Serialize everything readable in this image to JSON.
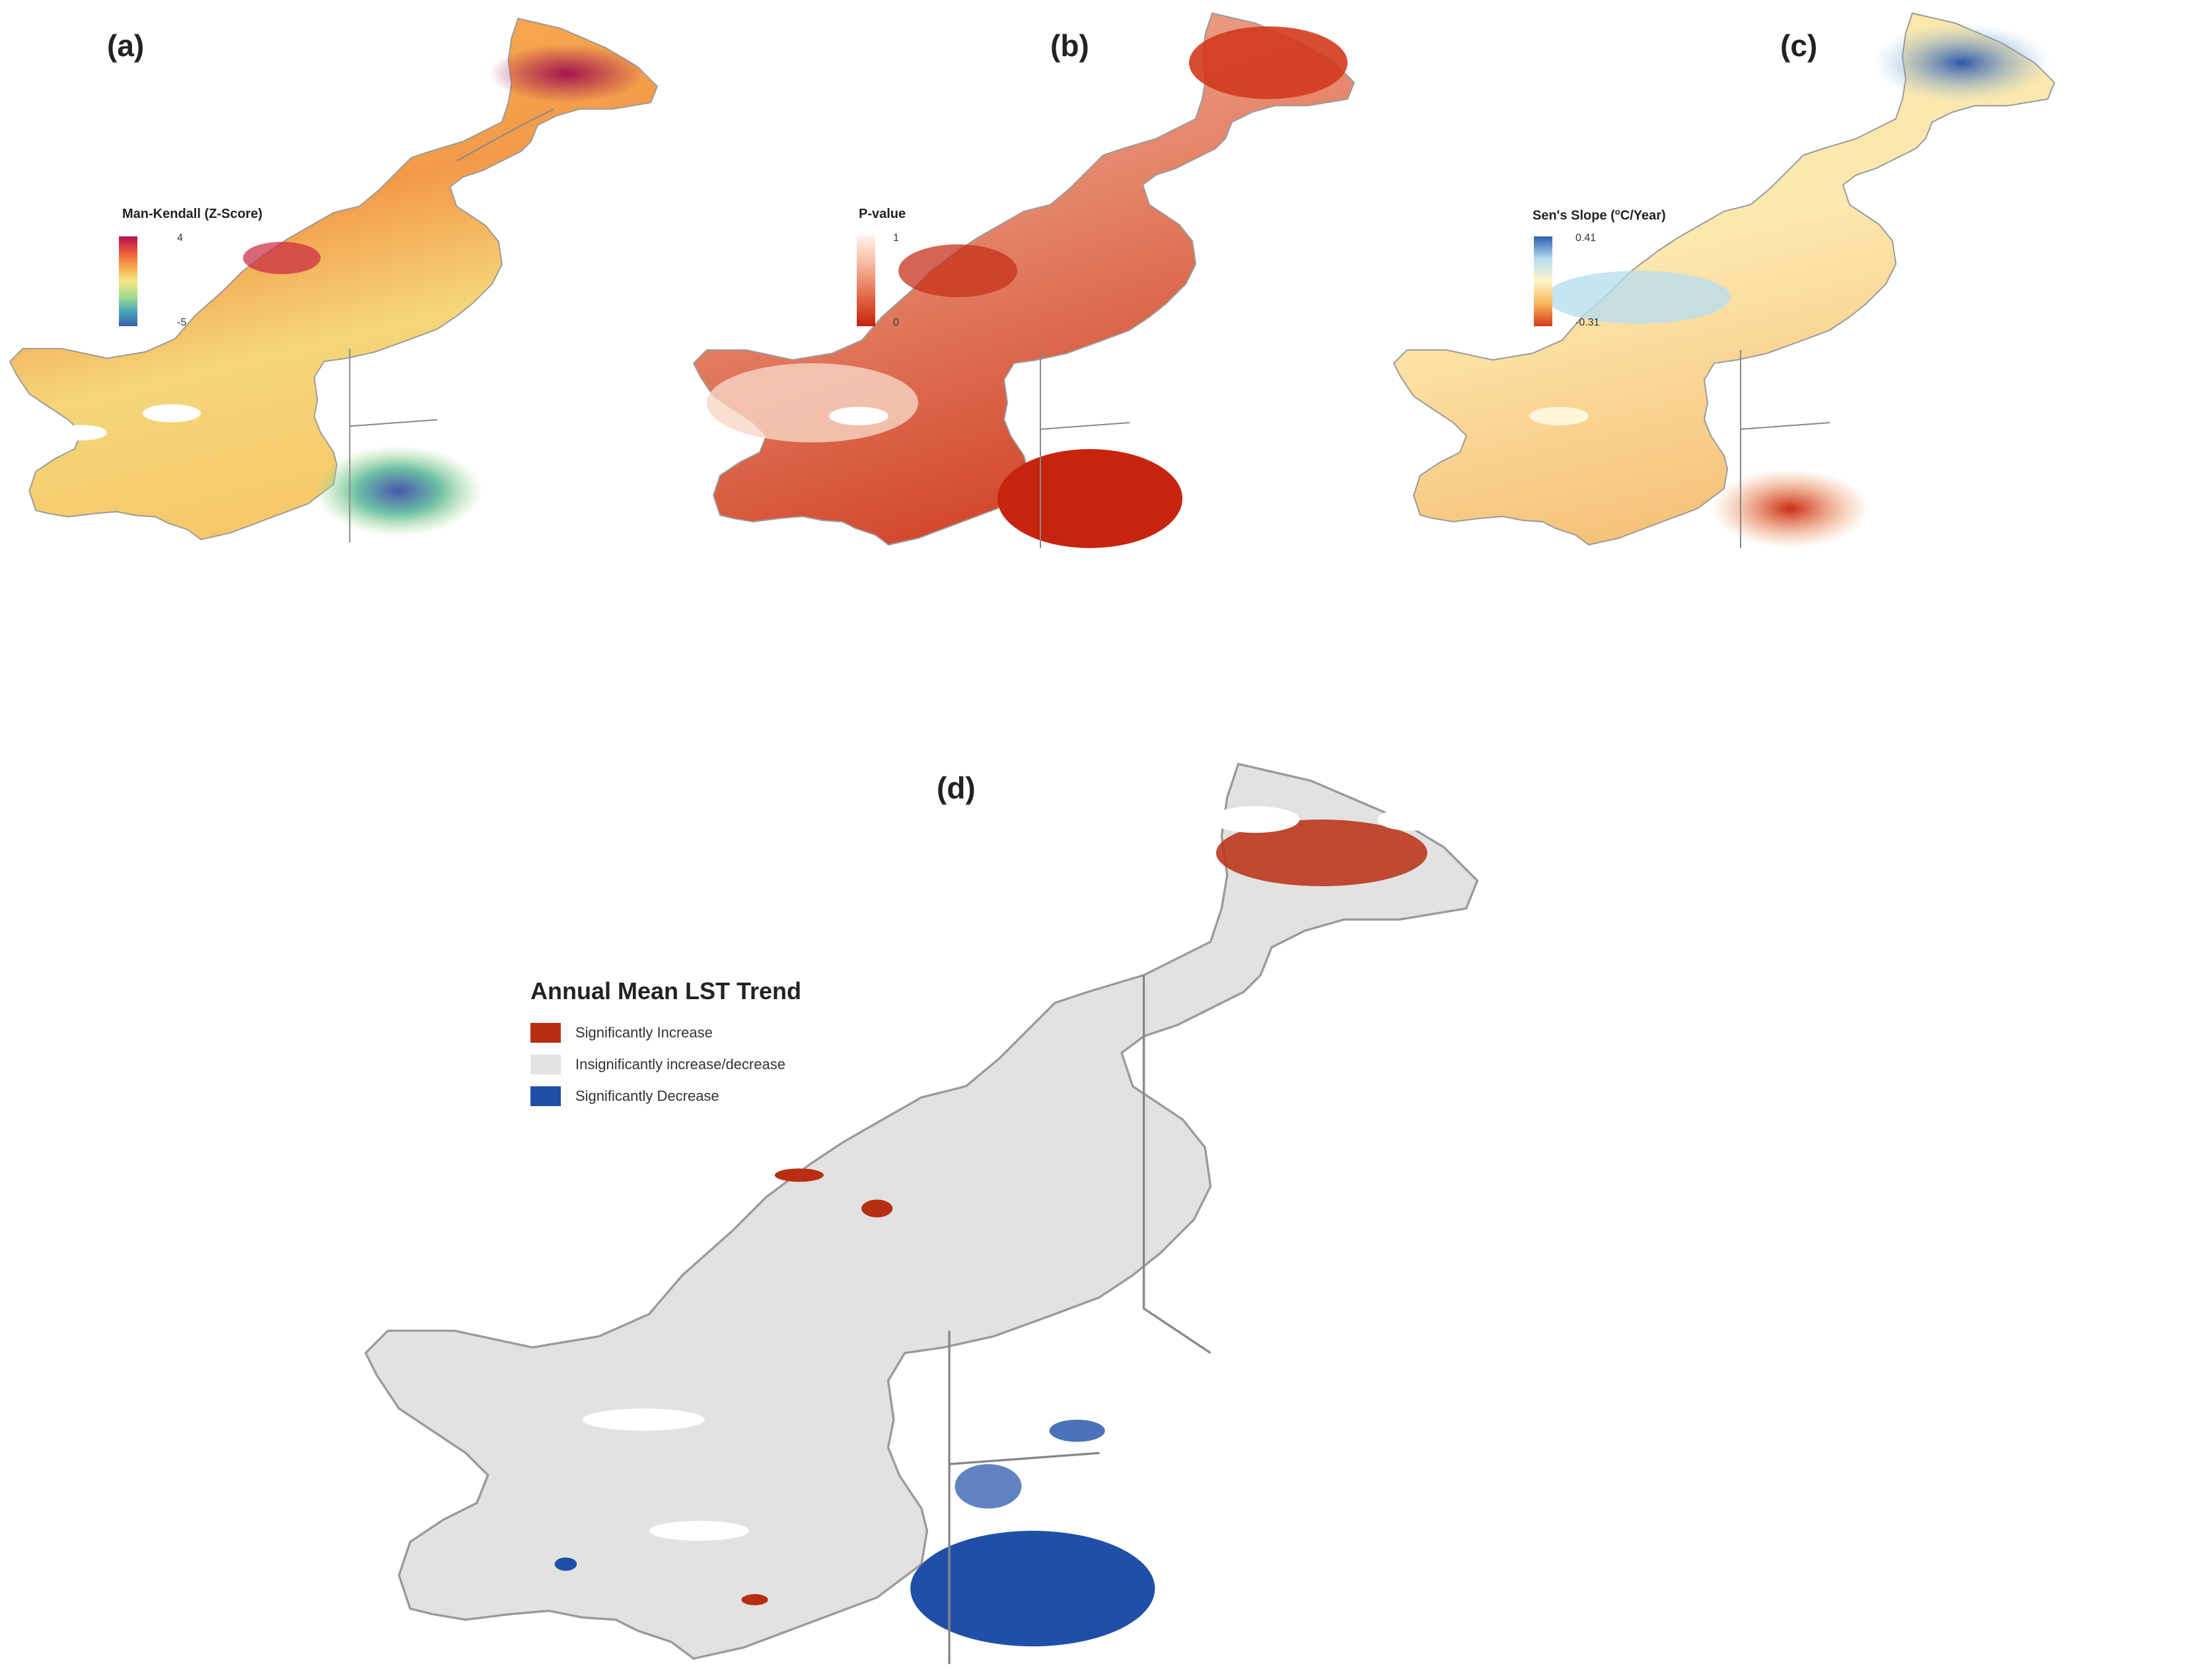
{
  "panels": {
    "a": {
      "label": "(a)",
      "legend_title": "Man-Kendall (Z-Score)",
      "max": "4",
      "min": "-5",
      "ramp": [
        "#b2124f",
        "#e8553a",
        "#f7a64a",
        "#f6e784",
        "#a5dc8c",
        "#4aa7b8",
        "#3b5db0"
      ]
    },
    "b": {
      "label": "(b)",
      "legend_title": "P-value",
      "max": "1",
      "min": "0",
      "ramp": [
        "#fff2ea",
        "#f5b49a",
        "#e36a4a",
        "#c6240e"
      ]
    },
    "c": {
      "label": "(c)",
      "legend_title": "Sen's Slope (",
      "legend_sup": "o",
      "legend_title_end": "C/Year)",
      "max": "0.41",
      "min": "-0.31",
      "ramp": [
        "#2e5fae",
        "#b6dcef",
        "#fff6c8",
        "#f7b55a",
        "#d73a1c"
      ]
    },
    "d": {
      "label": "(d)",
      "legend_title": "Annual Mean LST Trend",
      "classes": [
        {
          "label": "Significantly Increase",
          "color": "#b82e12"
        },
        {
          "label": "Insignificantly increase/decrease",
          "color": "#e2e2e2"
        },
        {
          "label": "Significantly Decrease",
          "color": "#1f4fa8"
        }
      ]
    }
  }
}
